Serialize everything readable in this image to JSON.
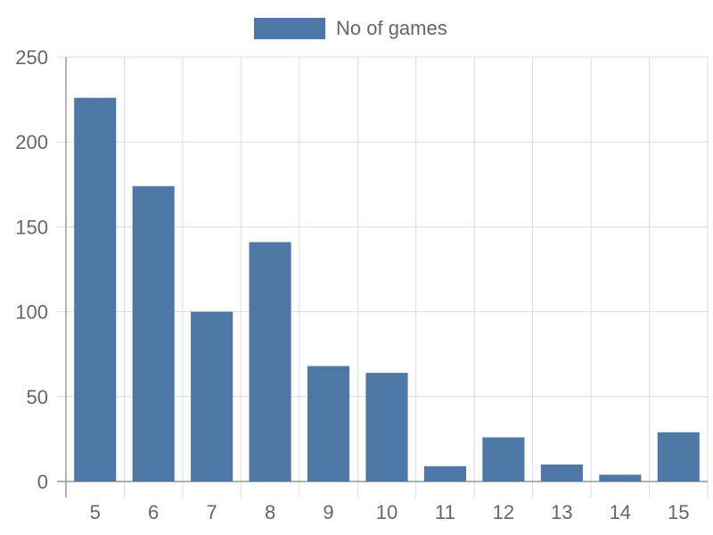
{
  "chart_data": {
    "type": "bar",
    "categories": [
      "5",
      "6",
      "7",
      "8",
      "9",
      "10",
      "11",
      "12",
      "13",
      "14",
      "15"
    ],
    "series": [
      {
        "name": "No of games",
        "color": "#4e79a7",
        "values": [
          226,
          174,
          100,
          141,
          68,
          64,
          9,
          26,
          10,
          4,
          29
        ]
      }
    ],
    "title": "",
    "xlabel": "",
    "ylabel": "",
    "ylim": [
      0,
      250
    ],
    "yticks": [
      "0",
      "50",
      "100",
      "150",
      "200",
      "250"
    ],
    "grid": true,
    "legend_position": "top-center"
  }
}
